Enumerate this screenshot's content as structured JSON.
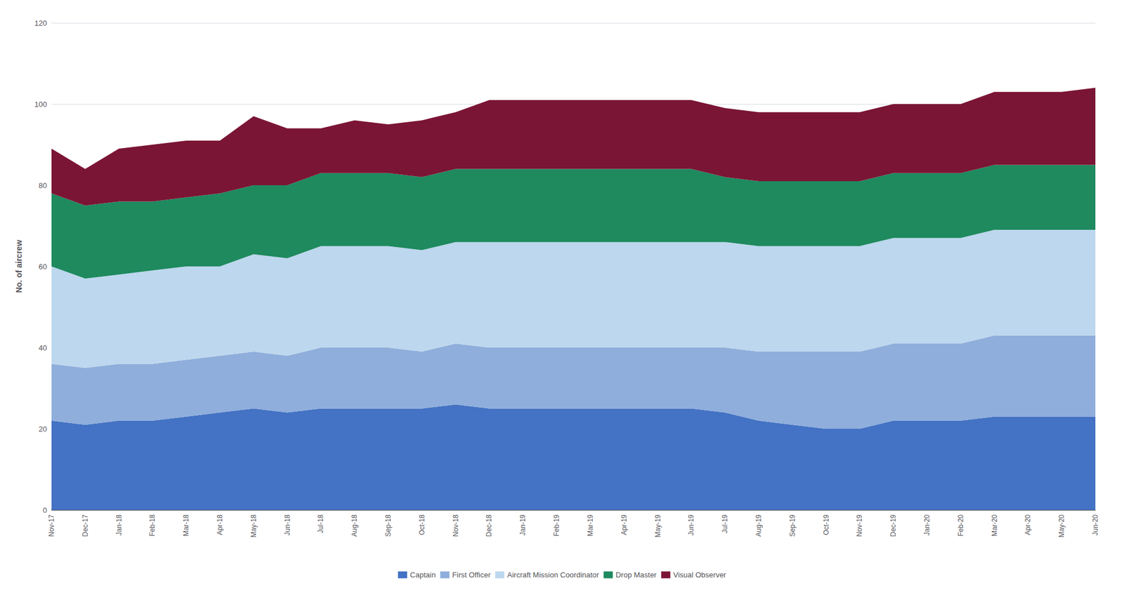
{
  "chart_data": {
    "type": "area",
    "stacked": true,
    "ylabel": "No. of aircrew",
    "categories": [
      "Nov-17",
      "Dec-17",
      "Jan-18",
      "Feb-18",
      "Mar-18",
      "Apr-18",
      "May-18",
      "Jun-18",
      "Jul-18",
      "Aug-18",
      "Sep-18",
      "Oct-18",
      "Nov-18",
      "Dec-18",
      "Jan-19",
      "Feb-19",
      "Mar-19",
      "Apr-19",
      "May-19",
      "Jun-19",
      "Jul-19",
      "Aug-19",
      "Sep-19",
      "Oct-19",
      "Nov-19",
      "Dec-19",
      "Jan-20",
      "Feb-20",
      "Mar-20",
      "Apr-20",
      "May-20",
      "Jun-20"
    ],
    "series": [
      {
        "name": "Captain",
        "color": "#4472C4",
        "values": [
          22,
          21,
          22,
          22,
          23,
          24,
          25,
          24,
          25,
          25,
          25,
          25,
          26,
          25,
          25,
          25,
          25,
          25,
          25,
          25,
          24,
          22,
          21,
          20,
          20,
          22,
          22,
          22,
          23,
          23,
          23,
          23
        ]
      },
      {
        "name": "First Officer",
        "color": "#8FAEDB",
        "values": [
          14,
          14,
          14,
          14,
          14,
          14,
          14,
          14,
          15,
          15,
          15,
          14,
          15,
          15,
          15,
          15,
          15,
          15,
          15,
          15,
          16,
          17,
          18,
          19,
          19,
          19,
          19,
          19,
          20,
          20,
          20,
          20
        ]
      },
      {
        "name": "Aircraft Mission Coordinator",
        "color": "#BDD7EE",
        "values": [
          24,
          22,
          22,
          23,
          23,
          22,
          24,
          24,
          25,
          25,
          25,
          25,
          25,
          26,
          26,
          26,
          26,
          26,
          26,
          26,
          26,
          26,
          26,
          26,
          26,
          26,
          26,
          26,
          26,
          26,
          26,
          26
        ]
      },
      {
        "name": "Drop Master",
        "color": "#1E8A5E",
        "values": [
          18,
          18,
          18,
          17,
          17,
          18,
          17,
          18,
          18,
          18,
          18,
          18,
          18,
          18,
          18,
          18,
          18,
          18,
          18,
          18,
          16,
          16,
          16,
          16,
          16,
          16,
          16,
          16,
          16,
          16,
          16,
          16
        ]
      },
      {
        "name": "Visual Observer",
        "color": "#7B1535",
        "values": [
          11,
          9,
          13,
          14,
          14,
          13,
          17,
          14,
          11,
          13,
          12,
          14,
          14,
          17,
          17,
          17,
          17,
          17,
          17,
          17,
          17,
          17,
          17,
          17,
          17,
          17,
          17,
          17,
          18,
          18,
          18,
          19
        ]
      }
    ],
    "ylim": [
      0,
      120
    ],
    "yticks": [
      0,
      20,
      40,
      60,
      80,
      100,
      120
    ],
    "grid": true,
    "legend": "bottom"
  }
}
